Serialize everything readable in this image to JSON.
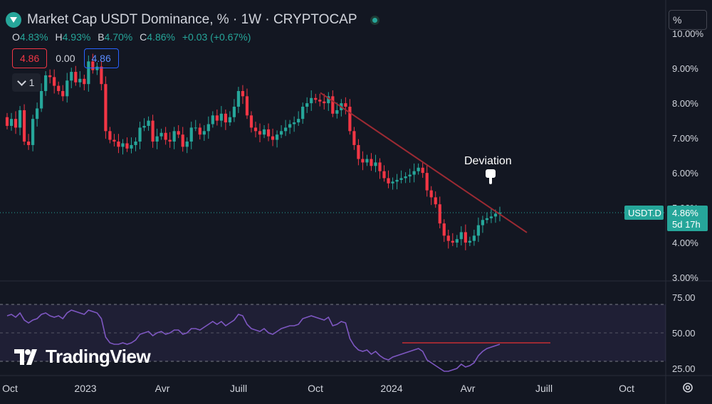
{
  "header": {
    "title": "Market Cap USDT Dominance, % · 1W · CRYPTOCAP",
    "ohlc": {
      "o_label": "O",
      "o": "4.83%",
      "h_label": "H",
      "h": "4.93%",
      "l_label": "B",
      "l": "4.70%",
      "c_label": "C",
      "c": "4.86%",
      "change": "+0.03 (+0.67%)"
    },
    "values": {
      "red": "4.86",
      "plain": "0.00",
      "blue": "4.86"
    },
    "collapse_count": "1",
    "scale_mode": "%"
  },
  "colors": {
    "up": "#26a69a",
    "down": "#f23645",
    "trend": "#9c2a33",
    "rsi": "#7e57c2",
    "bg": "#131722"
  },
  "logo": {
    "text": "TradingView"
  },
  "chart_data": [
    {
      "type": "candlestick",
      "symbol_tag": "USDT.D",
      "last_price": "4.86%",
      "countdown": "5d 17h",
      "y_ticks": [
        "10.00%",
        "9.00%",
        "8.00%",
        "7.00%",
        "6.00%",
        "5.00%",
        "4.00%",
        "3.00%"
      ],
      "ylim": [
        2.9,
        10.35
      ],
      "x_ticks": [
        "Oct",
        "2023",
        "Avr",
        "Juill",
        "Oct",
        "2024",
        "Avr",
        "Juill",
        "Oct"
      ],
      "annotation": "Deviation",
      "trendline": [
        [
          8.3,
          1.2
        ],
        [
          4.8,
          1.0
        ]
      ],
      "close": [
        7.35,
        7.55,
        7.3,
        7.8,
        6.9,
        6.8,
        7.55,
        7.85,
        8.35,
        8.8,
        8.75,
        8.5,
        8.35,
        8.2,
        8.65,
        8.9,
        8.6,
        8.7,
        8.55,
        9.2,
        8.95,
        9.05,
        8.55,
        7.2,
        6.95,
        6.9,
        6.75,
        6.85,
        6.7,
        6.8,
        6.9,
        7.3,
        7.35,
        7.5,
        6.9,
        7.05,
        7.15,
        6.95,
        6.9,
        7.2,
        7.1,
        6.75,
        6.9,
        7.3,
        7.3,
        7.1,
        7.2,
        7.4,
        7.65,
        7.5,
        7.7,
        7.45,
        7.6,
        7.9,
        8.35,
        8.2,
        7.65,
        7.3,
        7.2,
        7.1,
        7.25,
        7.05,
        6.95,
        7.1,
        7.2,
        7.3,
        7.4,
        7.45,
        7.55,
        7.9,
        8.0,
        8.15,
        8.1,
        8.05,
        8.0,
        8.2,
        7.7,
        7.8,
        8.0,
        7.9,
        7.2,
        6.8,
        6.4,
        6.3,
        6.4,
        6.2,
        6.3,
        6.05,
        5.85,
        5.7,
        5.75,
        5.8,
        5.85,
        5.9,
        5.95,
        6.05,
        6.15,
        6.0,
        5.5,
        5.3,
        5.1,
        4.55,
        4.2,
        4.05,
        4.0,
        4.1,
        4.3,
        4.0,
        4.05,
        4.2,
        4.5,
        4.65,
        4.7,
        4.75,
        4.83,
        4.86
      ],
      "rsi": {
        "y_ticks": [
          "75.00",
          "50.00",
          "25.00"
        ],
        "ylim": [
          20,
          85
        ],
        "upper": 70,
        "lower": 30,
        "values": [
          62,
          63,
          61,
          64,
          59,
          57,
          59,
          60,
          63,
          64,
          62,
          61,
          62,
          60,
          64,
          66,
          65,
          64,
          63,
          66,
          65,
          64,
          60,
          47,
          43,
          42,
          42,
          43,
          42,
          43,
          45,
          49,
          50,
          51,
          48,
          50,
          51,
          49,
          50,
          52,
          52,
          49,
          50,
          53,
          53,
          52,
          54,
          56,
          58,
          56,
          58,
          55,
          57,
          59,
          63,
          62,
          56,
          53,
          52,
          51,
          53,
          50,
          49,
          51,
          53,
          54,
          55,
          55,
          56,
          60,
          61,
          62,
          61,
          60,
          59,
          61,
          55,
          56,
          58,
          57,
          46,
          41,
          38,
          37,
          38,
          35,
          37,
          34,
          32,
          31,
          33,
          34,
          35,
          36,
          37,
          38,
          39,
          37,
          31,
          29,
          27,
          25,
          23,
          23,
          24,
          25,
          28,
          26,
          27,
          29,
          34,
          37,
          39,
          40,
          41,
          42
        ],
        "trendline": [
          [
            43,
            1.0
          ],
          [
            43,
            1.35
          ]
        ]
      }
    }
  ]
}
